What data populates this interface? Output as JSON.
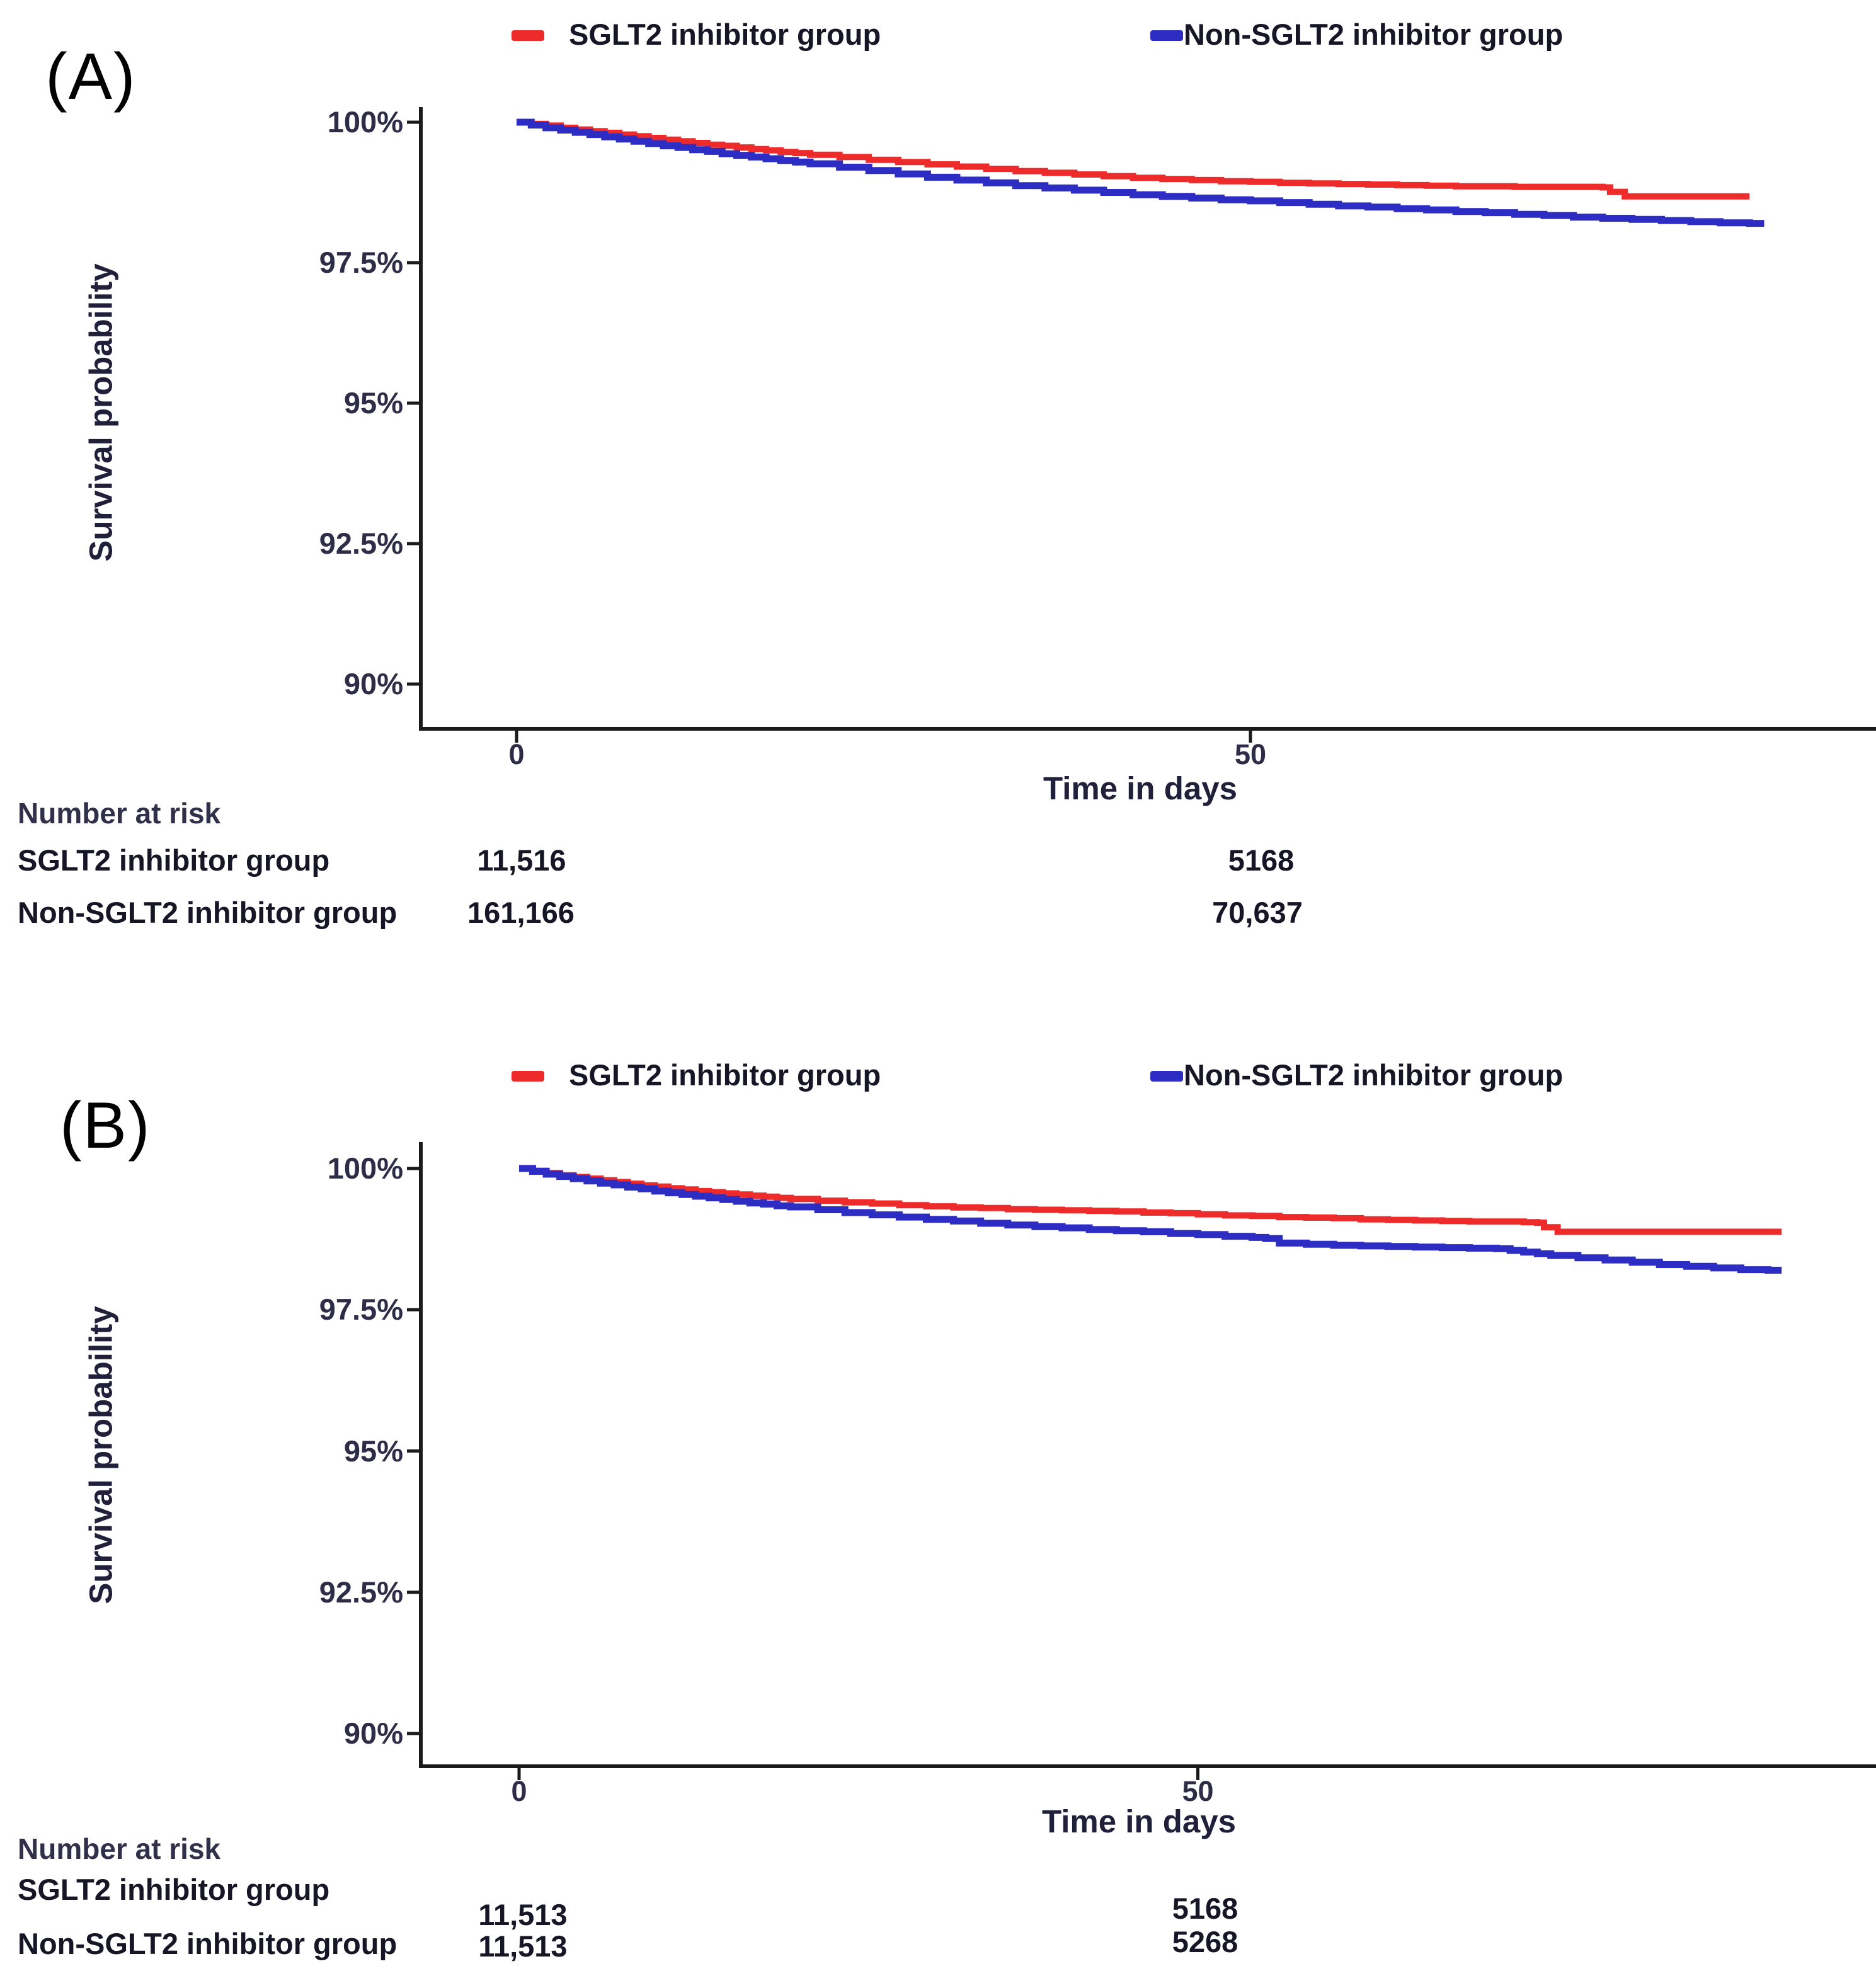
{
  "figure": {
    "description": "Kaplan-Meier survival curves, two panels",
    "colors": {
      "red": "#EE2B2B",
      "blue": "#2D2DC4",
      "axis": "#1a1a1a"
    }
  },
  "panels": [
    {
      "label": "(A)",
      "legend": [
        {
          "name": "SGLT2 inhibitor group",
          "color": "#EE2B2B"
        },
        {
          "name": "Non-SGLT2 inhibitor group",
          "color": "#2D2DC4"
        }
      ],
      "y_axis": {
        "label": "Survival probability",
        "ticks": [
          "100%",
          "97.5%",
          "95%",
          "92.5%",
          "90%"
        ]
      },
      "x_axis": {
        "label": "Time in days",
        "ticks": [
          "0",
          "50"
        ]
      },
      "at_risk": {
        "title": "Number at risk",
        "rows": [
          {
            "label": "SGLT2 inhibitor group",
            "values": [
              "11,516",
              "5168"
            ]
          },
          {
            "label": "Non-SGLT2 inhibitor group",
            "values": [
              "161,166",
              "70,637"
            ]
          }
        ]
      }
    },
    {
      "label": "(B)",
      "legend": [
        {
          "name": "SGLT2 inhibitor group",
          "color": "#EE2B2B"
        },
        {
          "name": "Non-SGLT2 inhibitor group",
          "color": "#2D2DC4"
        }
      ],
      "y_axis": {
        "label": "Survival probability",
        "ticks": [
          "100%",
          "97.5%",
          "95%",
          "92.5%",
          "90%"
        ]
      },
      "x_axis": {
        "label": "Time in days",
        "ticks": [
          "0",
          "50"
        ]
      },
      "at_risk": {
        "title": "Number at risk",
        "rows": [
          {
            "label": "SGLT2 inhibitor group",
            "values": [
              "11,513",
              "5168"
            ]
          },
          {
            "label": "Non-SGLT2 inhibitor group",
            "values": [
              "11,513",
              "5268"
            ]
          }
        ]
      }
    }
  ],
  "chart_data": [
    {
      "type": "line",
      "subtype": "kaplan-meier-step",
      "panel": "A",
      "xlabel": "Time in days",
      "ylabel": "Survival probability",
      "x_ticks_days": [
        0,
        50
      ],
      "y_ticks_percent": [
        100,
        97.5,
        95,
        92.5,
        90
      ],
      "xlim_days": [
        0,
        92
      ],
      "ylim_percent": [
        89,
        100.5
      ],
      "legend_position": "top",
      "grid": false,
      "number_at_risk": {
        "times": [
          0,
          50
        ],
        "SGLT2 inhibitor group": [
          11516,
          5168
        ],
        "Non-SGLT2 inhibitor group": [
          161166,
          70637
        ]
      },
      "series": [
        {
          "name": "SGLT2 inhibitor group",
          "color": "#EE2B2B",
          "points": [
            [
              0,
              100
            ],
            [
              1,
              99.97
            ],
            [
              2,
              99.94
            ],
            [
              3,
              99.9
            ],
            [
              4,
              99.87
            ],
            [
              5,
              99.84
            ],
            [
              6,
              99.81
            ],
            [
              7,
              99.78
            ],
            [
              8,
              99.75
            ],
            [
              9,
              99.72
            ],
            [
              10,
              99.69
            ],
            [
              11,
              99.66
            ],
            [
              12,
              99.63
            ],
            [
              13,
              99.6
            ],
            [
              14,
              99.58
            ],
            [
              15,
              99.55
            ],
            [
              16,
              99.52
            ],
            [
              17,
              99.5
            ],
            [
              18,
              99.47
            ],
            [
              19,
              99.45
            ],
            [
              20,
              99.42
            ],
            [
              22,
              99.38
            ],
            [
              24,
              99.33
            ],
            [
              26,
              99.29
            ],
            [
              28,
              99.25
            ],
            [
              30,
              99.21
            ],
            [
              32,
              99.17
            ],
            [
              34,
              99.13
            ],
            [
              36,
              99.1
            ],
            [
              38,
              99.07
            ],
            [
              40,
              99.04
            ],
            [
              42,
              99.01
            ],
            [
              44,
              98.99
            ],
            [
              46,
              98.97
            ],
            [
              48,
              98.95
            ],
            [
              50,
              98.94
            ],
            [
              52,
              98.92
            ],
            [
              54,
              98.91
            ],
            [
              56,
              98.9
            ],
            [
              58,
              98.89
            ],
            [
              60,
              98.88
            ],
            [
              62,
              98.87
            ],
            [
              64,
              98.86
            ],
            [
              66,
              98.86
            ],
            [
              68,
              98.85
            ],
            [
              70,
              98.85
            ],
            [
              72,
              98.85
            ],
            [
              74,
              98.84
            ],
            [
              74.5,
              98.76
            ],
            [
              75.5,
              98.68
            ],
            [
              84,
              98.68
            ]
          ]
        },
        {
          "name": "Non-SGLT2 inhibitor group",
          "color": "#2D2DC4",
          "points": [
            [
              0,
              100
            ],
            [
              1,
              99.95
            ],
            [
              2,
              99.9
            ],
            [
              3,
              99.86
            ],
            [
              4,
              99.82
            ],
            [
              5,
              99.78
            ],
            [
              6,
              99.74
            ],
            [
              7,
              99.7
            ],
            [
              8,
              99.66
            ],
            [
              9,
              99.62
            ],
            [
              10,
              99.58
            ],
            [
              11,
              99.55
            ],
            [
              12,
              99.51
            ],
            [
              13,
              99.48
            ],
            [
              14,
              99.44
            ],
            [
              15,
              99.41
            ],
            [
              16,
              99.38
            ],
            [
              17,
              99.35
            ],
            [
              18,
              99.32
            ],
            [
              19,
              99.29
            ],
            [
              20,
              99.26
            ],
            [
              22,
              99.2
            ],
            [
              24,
              99.14
            ],
            [
              26,
              99.08
            ],
            [
              28,
              99.02
            ],
            [
              30,
              98.97
            ],
            [
              32,
              98.92
            ],
            [
              34,
              98.87
            ],
            [
              36,
              98.83
            ],
            [
              38,
              98.79
            ],
            [
              40,
              98.75
            ],
            [
              42,
              98.71
            ],
            [
              44,
              98.68
            ],
            [
              46,
              98.65
            ],
            [
              48,
              98.62
            ],
            [
              50,
              98.6
            ],
            [
              52,
              98.57
            ],
            [
              54,
              98.54
            ],
            [
              56,
              98.51
            ],
            [
              58,
              98.49
            ],
            [
              60,
              98.46
            ],
            [
              62,
              98.44
            ],
            [
              64,
              98.41
            ],
            [
              66,
              98.39
            ],
            [
              68,
              98.36
            ],
            [
              70,
              98.34
            ],
            [
              72,
              98.31
            ],
            [
              74,
              98.29
            ],
            [
              76,
              98.27
            ],
            [
              78,
              98.25
            ],
            [
              80,
              98.23
            ],
            [
              82,
              98.21
            ],
            [
              84,
              98.2
            ],
            [
              85,
              98.2
            ]
          ]
        }
      ]
    },
    {
      "type": "line",
      "subtype": "kaplan-meier-step",
      "panel": "B",
      "xlabel": "Time in days",
      "ylabel": "Survival probability",
      "x_ticks_days": [
        0,
        50
      ],
      "y_ticks_percent": [
        100,
        97.5,
        95,
        92.5,
        90
      ],
      "xlim_days": [
        0,
        93
      ],
      "ylim_percent": [
        89,
        100.5
      ],
      "legend_position": "top",
      "grid": false,
      "number_at_risk": {
        "times": [
          0,
          50
        ],
        "SGLT2 inhibitor group": [
          11513,
          5168
        ],
        "Non-SGLT2 inhibitor group": [
          11513,
          5268
        ]
      },
      "series": [
        {
          "name": "SGLT2 inhibitor group",
          "color": "#EE2B2B",
          "points": [
            [
              0,
              100
            ],
            [
              1,
              99.96
            ],
            [
              2,
              99.92
            ],
            [
              3,
              99.88
            ],
            [
              4,
              99.85
            ],
            [
              5,
              99.82
            ],
            [
              6,
              99.79
            ],
            [
              7,
              99.76
            ],
            [
              8,
              99.73
            ],
            [
              9,
              99.7
            ],
            [
              10,
              99.68
            ],
            [
              11,
              99.65
            ],
            [
              12,
              99.63
            ],
            [
              13,
              99.6
            ],
            [
              14,
              99.58
            ],
            [
              15,
              99.56
            ],
            [
              16,
              99.54
            ],
            [
              17,
              99.52
            ],
            [
              18,
              99.5
            ],
            [
              19,
              99.48
            ],
            [
              20,
              99.46
            ],
            [
              22,
              99.43
            ],
            [
              24,
              99.4
            ],
            [
              26,
              99.38
            ],
            [
              28,
              99.35
            ],
            [
              30,
              99.33
            ],
            [
              32,
              99.31
            ],
            [
              34,
              99.3
            ],
            [
              36,
              99.28
            ],
            [
              38,
              99.27
            ],
            [
              40,
              99.26
            ],
            [
              42,
              99.25
            ],
            [
              44,
              99.24
            ],
            [
              46,
              99.22
            ],
            [
              48,
              99.21
            ],
            [
              50,
              99.19
            ],
            [
              52,
              99.17
            ],
            [
              54,
              99.16
            ],
            [
              56,
              99.14
            ],
            [
              58,
              99.13
            ],
            [
              60,
              99.12
            ],
            [
              62,
              99.1
            ],
            [
              64,
              99.09
            ],
            [
              66,
              99.08
            ],
            [
              68,
              99.07
            ],
            [
              70,
              99.06
            ],
            [
              72,
              99.06
            ],
            [
              74,
              99.05
            ],
            [
              75,
              99.04
            ],
            [
              75.5,
              98.96
            ],
            [
              76.5,
              98.88
            ],
            [
              93,
              98.88
            ]
          ]
        },
        {
          "name": "Non-SGLT2 inhibitor group",
          "color": "#2D2DC4",
          "points": [
            [
              0,
              100
            ],
            [
              1,
              99.95
            ],
            [
              2,
              99.9
            ],
            [
              3,
              99.86
            ],
            [
              4,
              99.82
            ],
            [
              5,
              99.78
            ],
            [
              6,
              99.74
            ],
            [
              7,
              99.71
            ],
            [
              8,
              99.67
            ],
            [
              9,
              99.64
            ],
            [
              10,
              99.6
            ],
            [
              11,
              99.57
            ],
            [
              12,
              99.54
            ],
            [
              13,
              99.51
            ],
            [
              14,
              99.48
            ],
            [
              15,
              99.45
            ],
            [
              16,
              99.42
            ],
            [
              17,
              99.39
            ],
            [
              18,
              99.37
            ],
            [
              19,
              99.34
            ],
            [
              20,
              99.32
            ],
            [
              22,
              99.27
            ],
            [
              24,
              99.22
            ],
            [
              26,
              99.18
            ],
            [
              28,
              99.14
            ],
            [
              30,
              99.1
            ],
            [
              32,
              99.07
            ],
            [
              34,
              99.03
            ],
            [
              36,
              99.0
            ],
            [
              38,
              98.97
            ],
            [
              40,
              98.95
            ],
            [
              42,
              98.92
            ],
            [
              44,
              98.9
            ],
            [
              46,
              98.88
            ],
            [
              48,
              98.85
            ],
            [
              50,
              98.83
            ],
            [
              52,
              98.8
            ],
            [
              54,
              98.78
            ],
            [
              55,
              98.76
            ],
            [
              56,
              98.68
            ],
            [
              58,
              98.66
            ],
            [
              60,
              98.64
            ],
            [
              62,
              98.63
            ],
            [
              64,
              98.62
            ],
            [
              66,
              98.61
            ],
            [
              68,
              98.6
            ],
            [
              70,
              98.59
            ],
            [
              72,
              98.58
            ],
            [
              73,
              98.55
            ],
            [
              74,
              98.52
            ],
            [
              75,
              98.49
            ],
            [
              76,
              98.46
            ],
            [
              78,
              98.42
            ],
            [
              80,
              98.38
            ],
            [
              82,
              98.34
            ],
            [
              84,
              98.3
            ],
            [
              86,
              98.27
            ],
            [
              88,
              98.24
            ],
            [
              90,
              98.21
            ],
            [
              92,
              98.2
            ],
            [
              93,
              98.2
            ]
          ]
        }
      ]
    }
  ]
}
